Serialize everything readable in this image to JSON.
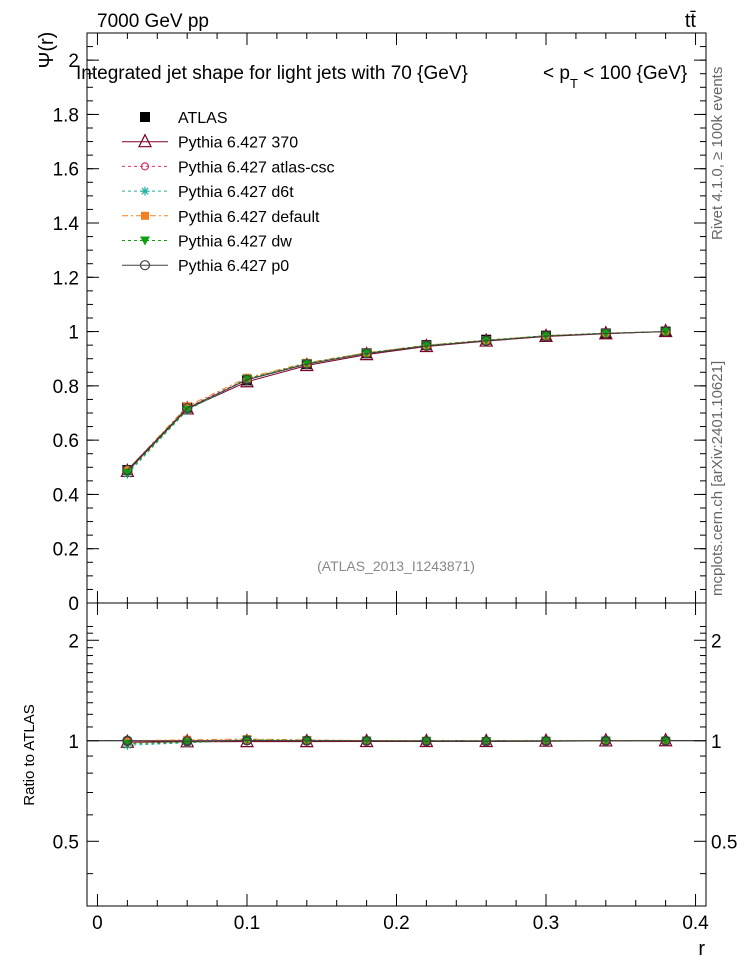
{
  "header": {
    "energy_label": "7000 GeV pp",
    "process_label": "tt̄"
  },
  "side_labels": {
    "rivet": "Rivet 4.1.0, ≥ 100k events",
    "mcplots": "mcplots.cern.ch [arXiv:2401.10621]"
  },
  "chart_data": [
    {
      "type": "line",
      "title": "Integrated jet shape for light jets with 70 {GeV}    < p_T < 100 {GeV}",
      "title_main": "Integrated jet shape for light jets with 70 {GeV}",
      "title_pt_pre": "< p",
      "title_pt_sub": "T",
      "title_pt_post": " < 100 {GeV}",
      "xlabel": "r",
      "ylabel": "Ψ(r)",
      "xlim": [
        -0.007,
        0.407
      ],
      "ylim": [
        0,
        2.1
      ],
      "yticks": [
        0,
        0.2,
        0.4,
        0.6,
        0.8,
        1,
        1.2,
        1.4,
        1.6,
        1.8,
        2
      ],
      "ytick_labels": [
        "0",
        "0.2",
        "0.4",
        "0.6",
        "0.8",
        "1",
        "1.2",
        "1.4",
        "1.6",
        "1.8",
        "2"
      ],
      "analysis_label": "(ATLAS_2013_I1243871)",
      "x": [
        0.02,
        0.06,
        0.1,
        0.14,
        0.18,
        0.22,
        0.26,
        0.3,
        0.34,
        0.38
      ],
      "series": [
        {
          "name": "ATLAS",
          "color": "#000000",
          "values": [
            0.49,
            0.72,
            0.82,
            0.88,
            0.92,
            0.95,
            0.97,
            0.985,
            0.993,
            1.0
          ]
        },
        {
          "name": "Pythia 6.427 370",
          "color": "#7b0028",
          "values": [
            0.485,
            0.715,
            0.815,
            0.875,
            0.915,
            0.945,
            0.965,
            0.982,
            0.992,
            1.0
          ]
        },
        {
          "name": "Pythia 6.427 atlas-csc",
          "color": "#e0306a",
          "values": [
            0.49,
            0.72,
            0.825,
            0.882,
            0.92,
            0.948,
            0.967,
            0.984,
            0.993,
            1.0
          ]
        },
        {
          "name": "Pythia 6.427 d6t",
          "color": "#20b0a0",
          "values": [
            0.475,
            0.71,
            0.825,
            0.882,
            0.921,
            0.949,
            0.968,
            0.985,
            0.994,
            1.0
          ]
        },
        {
          "name": "Pythia 6.427 default",
          "color": "#f08020",
          "values": [
            0.49,
            0.725,
            0.83,
            0.885,
            0.922,
            0.95,
            0.968,
            0.985,
            0.994,
            1.0
          ]
        },
        {
          "name": "Pythia 6.427 dw",
          "color": "#10a010",
          "values": [
            0.48,
            0.712,
            0.826,
            0.883,
            0.921,
            0.949,
            0.968,
            0.985,
            0.994,
            1.0
          ]
        },
        {
          "name": "Pythia 6.427 p0",
          "color": "#404040",
          "values": [
            0.49,
            0.718,
            0.822,
            0.88,
            0.919,
            0.947,
            0.966,
            0.983,
            0.993,
            1.0
          ]
        }
      ]
    },
    {
      "type": "line",
      "title": "",
      "xlabel": "r",
      "ylabel": "Ratio to ATLAS",
      "xlim": [
        -0.007,
        0.407
      ],
      "ylim": [
        0.35,
        2.3
      ],
      "yticks": [
        0.5,
        1,
        2
      ],
      "ytick_labels": [
        "0.5",
        "1",
        "2"
      ],
      "xticks": [
        0,
        0.1,
        0.2,
        0.3,
        0.4
      ],
      "xtick_labels": [
        "0",
        "0.1",
        "0.2",
        "0.3",
        "0.4"
      ],
      "x": [
        0.02,
        0.06,
        0.1,
        0.14,
        0.18,
        0.22,
        0.26,
        0.3,
        0.34,
        0.38
      ],
      "series": [
        {
          "name": "Pythia 6.427 370",
          "values": [
            0.99,
            0.993,
            0.994,
            0.994,
            0.995,
            0.995,
            0.995,
            0.997,
            0.999,
            1.0
          ]
        },
        {
          "name": "Pythia 6.427 atlas-csc",
          "values": [
            1.0,
            1.0,
            1.006,
            1.002,
            1.0,
            0.998,
            0.997,
            0.999,
            1.0,
            1.0
          ]
        },
        {
          "name": "Pythia 6.427 d6t",
          "values": [
            0.97,
            0.986,
            1.006,
            1.002,
            1.001,
            0.999,
            0.998,
            1.0,
            1.001,
            1.0
          ]
        },
        {
          "name": "Pythia 6.427 default",
          "values": [
            1.0,
            1.007,
            1.012,
            1.006,
            1.002,
            1.0,
            0.998,
            1.0,
            1.001,
            1.0
          ]
        },
        {
          "name": "Pythia 6.427 dw",
          "values": [
            0.98,
            0.989,
            1.007,
            1.003,
            1.001,
            0.999,
            0.998,
            1.0,
            1.001,
            1.0
          ]
        },
        {
          "name": "Pythia 6.427 p0",
          "values": [
            1.0,
            0.997,
            1.002,
            1.0,
            0.999,
            0.997,
            0.996,
            0.998,
            1.0,
            1.0
          ]
        }
      ]
    }
  ]
}
